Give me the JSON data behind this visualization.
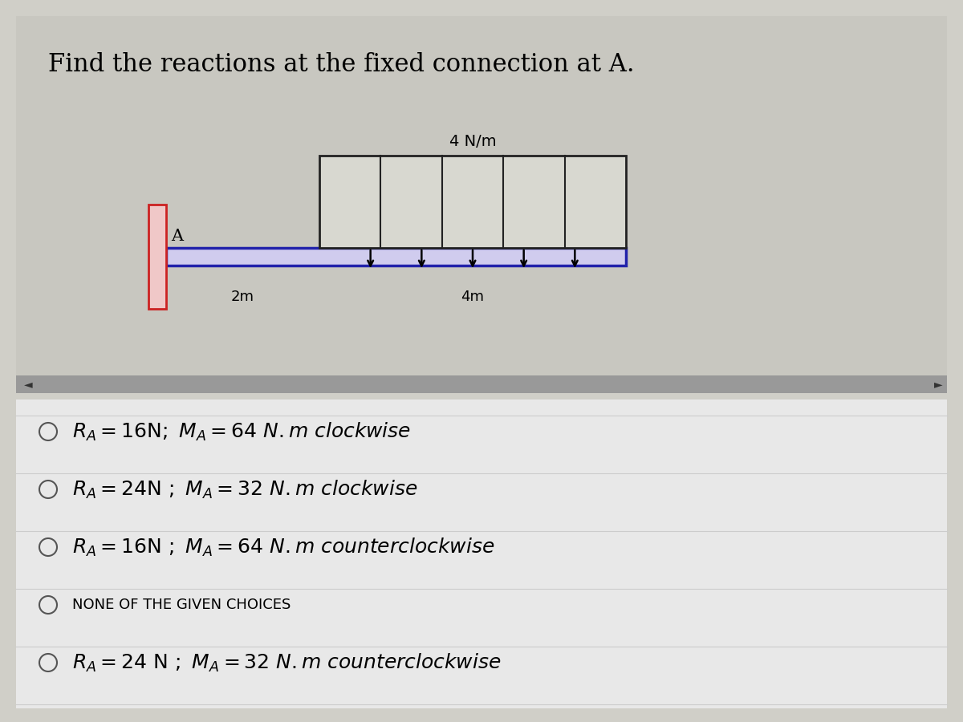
{
  "title": "Find the reactions at the fixed connection at A.",
  "title_fontsize": 22,
  "bg_color": "#d0cfc8",
  "top_panel_color": "#c8c7c0",
  "bottom_panel_color": "#e8e8e8",
  "scrollbar_color": "#999999",
  "beam_fill": "#d0ccee",
  "beam_edge": "#2222aa",
  "wall_fill": "#f0c8c8",
  "wall_edge": "#cc2222",
  "load_box_fill": "#d8d8d0",
  "load_box_edge": "#222222",
  "load_label": "4 N/m",
  "dim_label_left": "2m",
  "dim_label_right": "4m",
  "point_label": "A",
  "n_load_arrows": 5,
  "n_load_lines": 4
}
